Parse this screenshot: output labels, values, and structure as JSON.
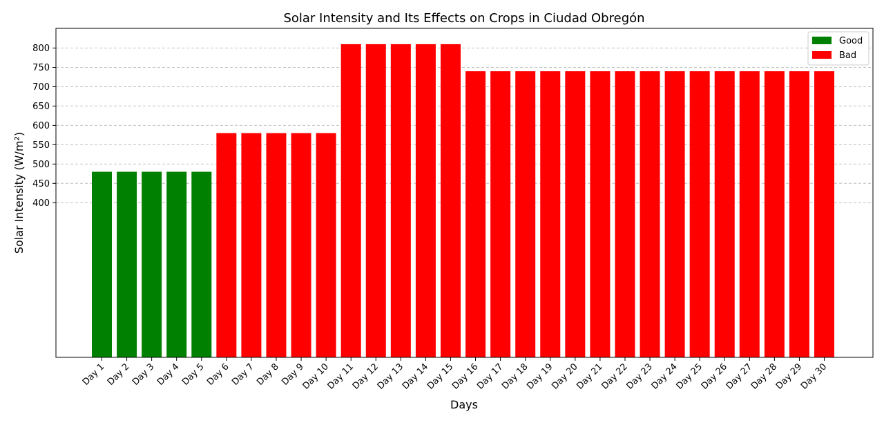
{
  "chart_data": {
    "type": "bar",
    "title": "Solar Intensity and Its Effects on Crops in Ciudad Obregón",
    "xlabel": "Days",
    "ylabel": "Solar Intensity (W/m²)",
    "categories": [
      "Day 1",
      "Day 2",
      "Day 3",
      "Day 4",
      "Day 5",
      "Day 6",
      "Day 7",
      "Day 8",
      "Day 9",
      "Day 10",
      "Day 11",
      "Day 12",
      "Day 13",
      "Day 14",
      "Day 15",
      "Day 16",
      "Day 17",
      "Day 18",
      "Day 19",
      "Day 20",
      "Day 21",
      "Day 22",
      "Day 23",
      "Day 24",
      "Day 25",
      "Day 26",
      "Day 27",
      "Day 28",
      "Day 29",
      "Day 30"
    ],
    "values": [
      480,
      480,
      480,
      480,
      480,
      580,
      580,
      580,
      580,
      580,
      810,
      810,
      810,
      810,
      810,
      740,
      740,
      740,
      740,
      740,
      740,
      740,
      740,
      740,
      740,
      740,
      740,
      740,
      740,
      740
    ],
    "labels": [
      "Good",
      "Good",
      "Good",
      "Good",
      "Good",
      "Bad",
      "Bad",
      "Bad",
      "Bad",
      "Bad",
      "Bad",
      "Bad",
      "Bad",
      "Bad",
      "Bad",
      "Bad",
      "Bad",
      "Bad",
      "Bad",
      "Bad",
      "Bad",
      "Bad",
      "Bad",
      "Bad",
      "Bad",
      "Bad",
      "Bad",
      "Bad",
      "Bad",
      "Bad"
    ],
    "ylim": [
      0,
      851
    ],
    "yticks": [
      400,
      450,
      500,
      550,
      600,
      650,
      700,
      750,
      800
    ],
    "grid": "horizontal dashed",
    "legend": {
      "placement": "top-right",
      "entries": [
        {
          "name": "Good",
          "color": "#008000"
        },
        {
          "name": "Bad",
          "color": "#ff0000"
        }
      ]
    }
  }
}
